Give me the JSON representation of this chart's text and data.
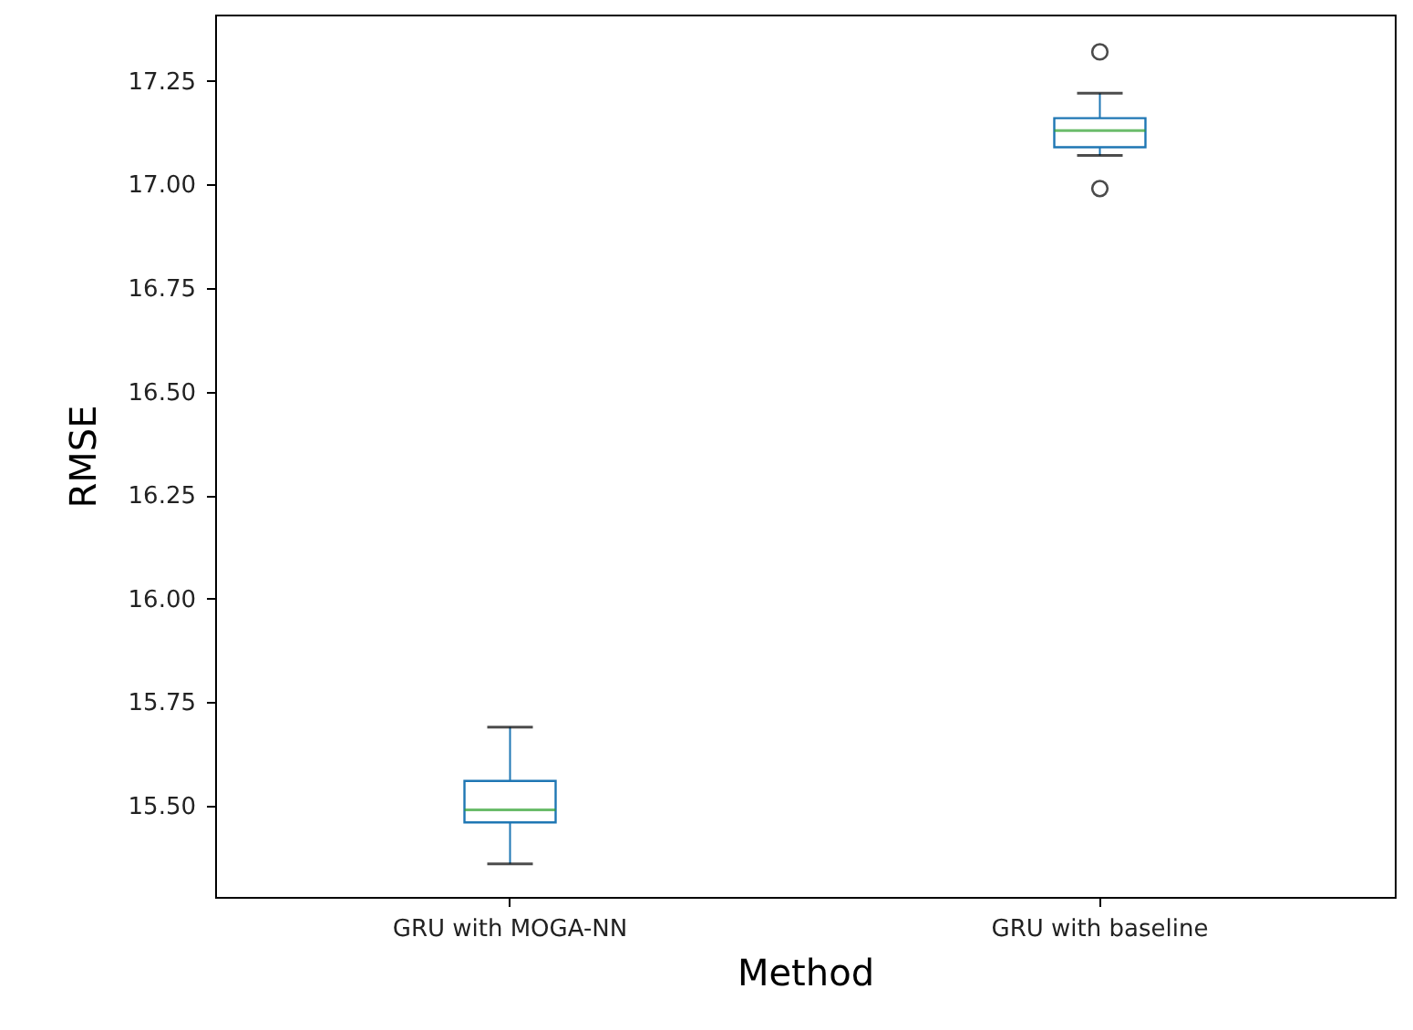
{
  "chart_data": {
    "type": "box",
    "xlabel": "Method",
    "ylabel": "RMSE",
    "categories": [
      "GRU with MOGA-NN",
      "GRU with baseline"
    ],
    "color": "#1f77b4",
    "boxes": [
      {
        "low": 15.36,
        "q1": 15.46,
        "median": 15.49,
        "q3": 15.56,
        "high": 15.69
      },
      {
        "low": 17.07,
        "q1": 17.09,
        "median": 17.13,
        "q3": 17.16,
        "high": 17.22,
        "outliers": [
          16.99,
          17.32
        ]
      }
    ],
    "ylim": [
      15.28,
      17.41
    ],
    "yticks": [
      {
        "value": 15.5,
        "label": "15.50"
      },
      15.75,
      {
        "value": 16,
        "label": "16.00"
      },
      16.25,
      {
        "value": 16.5,
        "label": "16.50"
      },
      16.75,
      {
        "value": 17,
        "label": "17.00"
      },
      17.25
    ],
    "grid": false,
    "marker": "circle"
  }
}
